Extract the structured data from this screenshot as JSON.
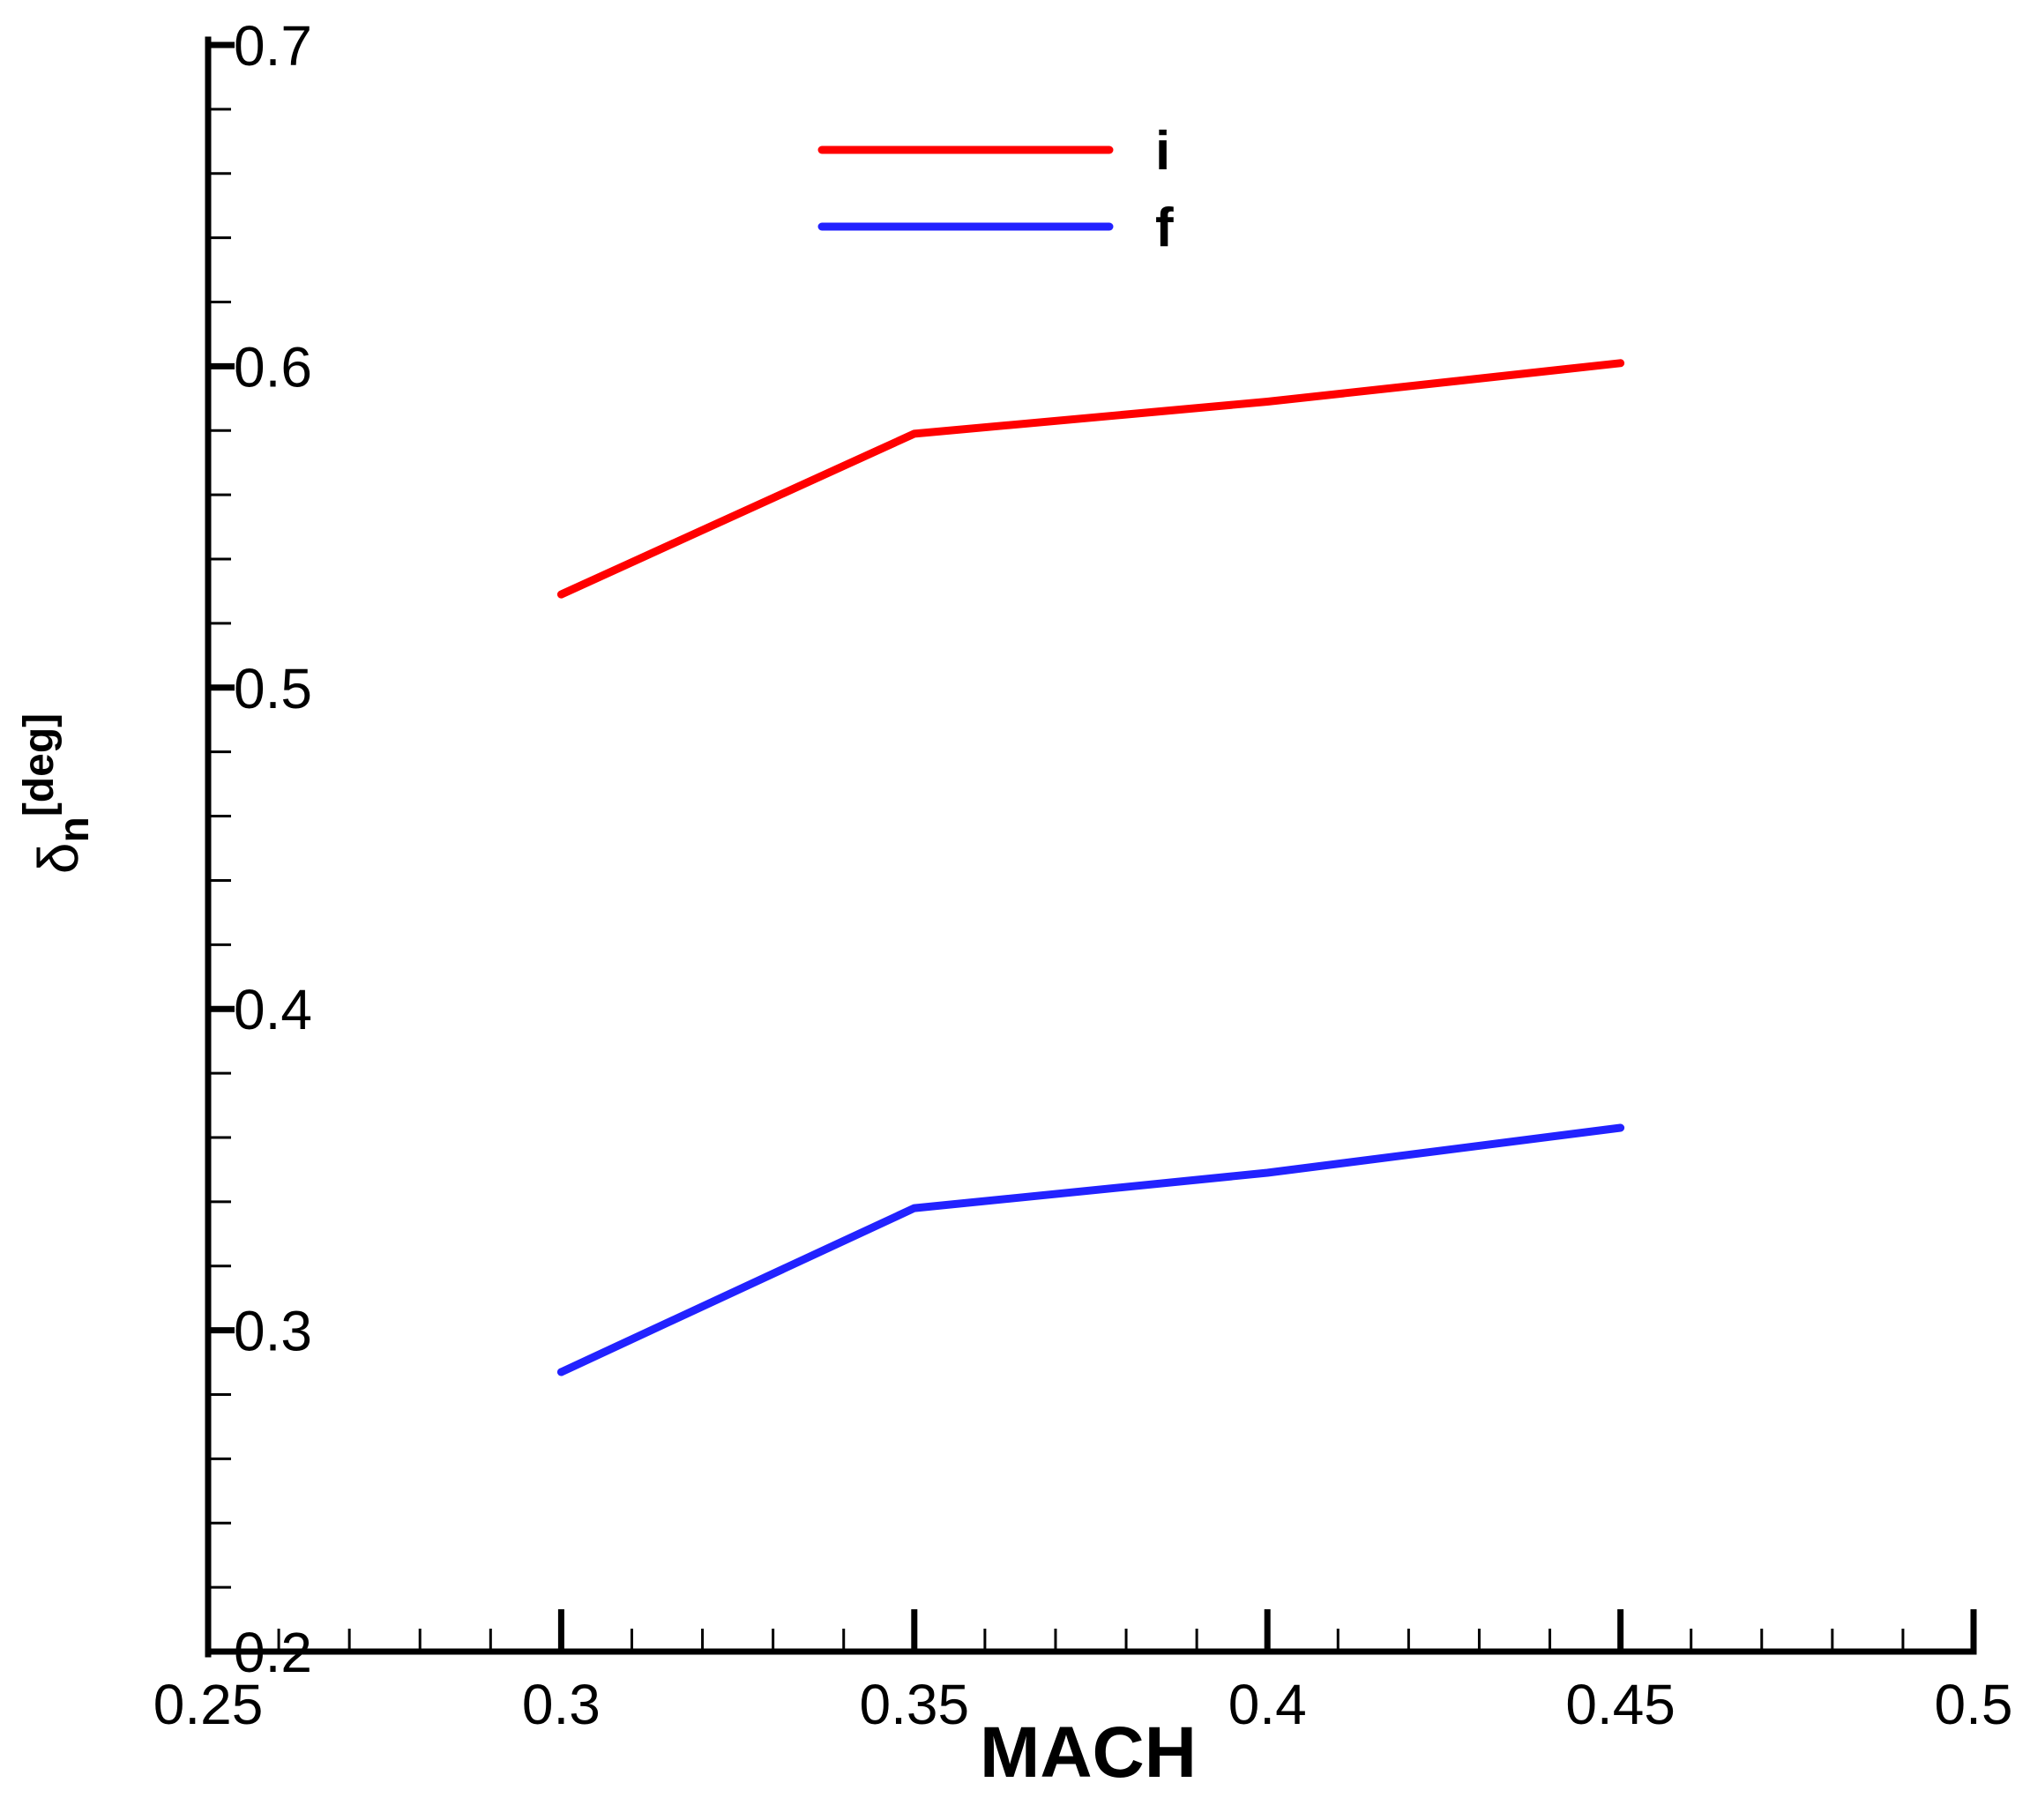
{
  "chart_data": {
    "type": "line",
    "title": "",
    "xlabel": "MACH",
    "ylabel": {
      "symbol": "δ",
      "subscript": "n",
      "unit": "[deg]"
    },
    "xlim": [
      0.25,
      0.5
    ],
    "ylim": [
      0.2,
      0.7
    ],
    "x_ticks": [
      "0.25",
      "0.3",
      "0.35",
      "0.4",
      "0.45",
      "0.5"
    ],
    "y_ticks": [
      "0.2",
      "0.3",
      "0.4",
      "0.5",
      "0.6",
      "0.7"
    ],
    "x_minor_step": 0.01,
    "y_minor_step": 0.02,
    "grid": false,
    "legend_position": "top-center",
    "series": [
      {
        "name": "i",
        "color": "#ff0000",
        "x": [
          0.3,
          0.35,
          0.4,
          0.45
        ],
        "y": [
          0.529,
          0.579,
          0.589,
          0.601
        ]
      },
      {
        "name": "f",
        "color": "#2222ff",
        "x": [
          0.3,
          0.35,
          0.4,
          0.45
        ],
        "y": [
          0.287,
          0.338,
          0.349,
          0.363
        ]
      }
    ]
  }
}
